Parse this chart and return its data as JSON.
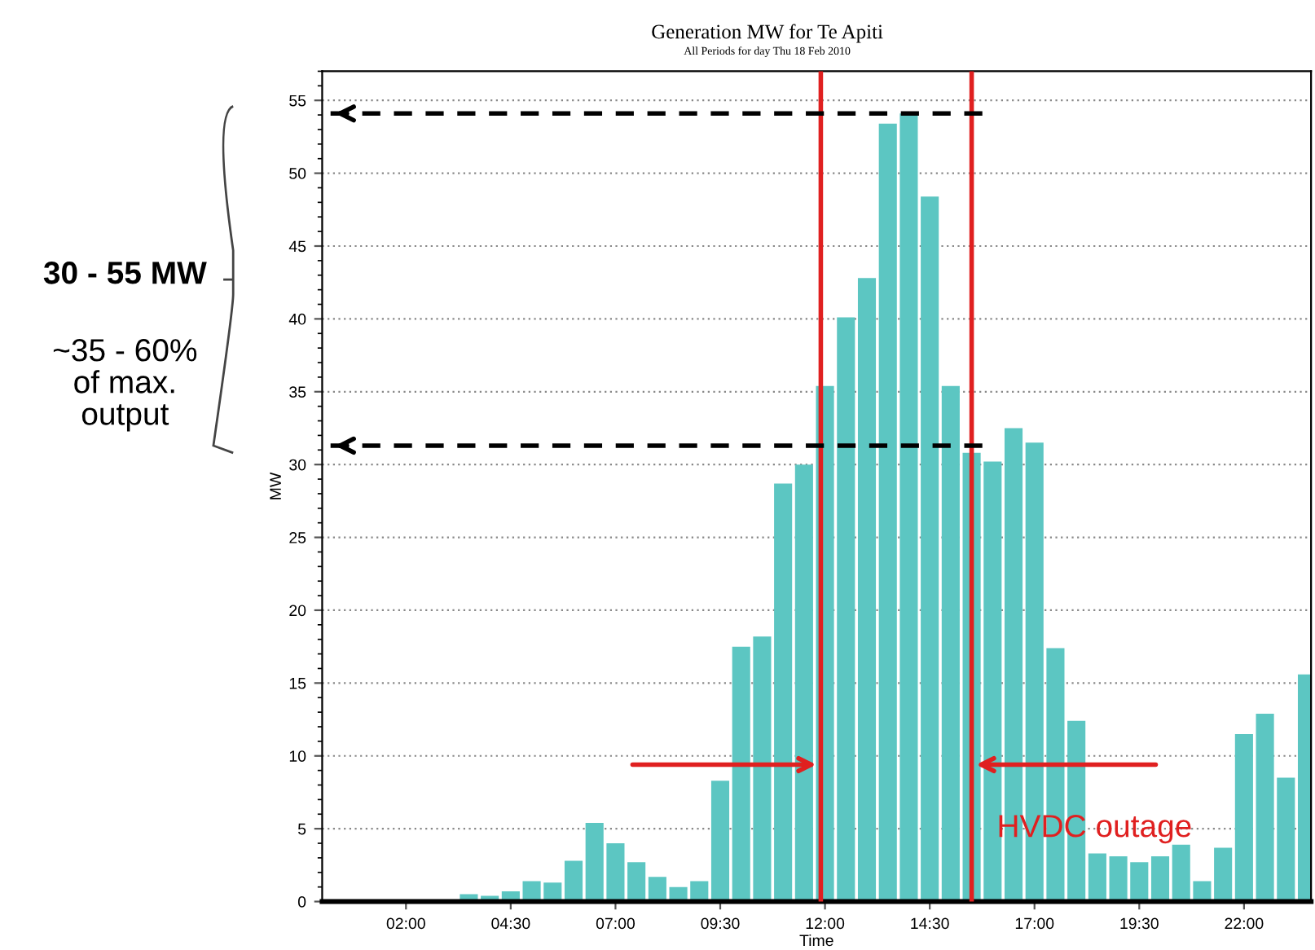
{
  "chart_data": {
    "type": "bar",
    "title": "Generation MW for Te Apiti",
    "subtitle": "All Periods for day Thu 18 Feb 2010",
    "xlabel": "Time",
    "ylabel": "MW",
    "x": [
      3.5,
      4.0,
      4.5,
      5.0,
      5.5,
      6.0,
      6.5,
      7.0,
      7.5,
      8.0,
      8.5,
      9.0,
      9.5,
      10.0,
      10.5,
      11.0,
      11.5,
      12.0,
      12.5,
      13.0,
      13.5,
      14.0,
      14.5,
      15.0,
      15.5,
      16.0,
      16.5,
      17.0,
      17.5,
      18.0,
      18.5,
      19.0,
      19.5,
      20.0,
      20.5,
      21.0,
      21.5,
      22.0,
      22.5,
      23.0,
      23.5
    ],
    "values": [
      0.5,
      0.4,
      0.7,
      1.4,
      1.3,
      2.8,
      5.4,
      4.0,
      2.7,
      1.7,
      1.0,
      1.4,
      8.3,
      17.5,
      18.2,
      28.7,
      30.0,
      35.4,
      40.1,
      42.8,
      53.4,
      54.1,
      48.4,
      35.4,
      30.8,
      30.2,
      32.5,
      31.5,
      17.4,
      12.4,
      3.3,
      3.1,
      2.7,
      3.1,
      3.9,
      1.4,
      3.7,
      11.5,
      12.9,
      8.5,
      15.6
    ],
    "color": "#5cc6c2",
    "xlim": [
      0,
      23.6
    ],
    "ylim": [
      0,
      57
    ],
    "xticks": [
      {
        "value": 2,
        "label": "02:00"
      },
      {
        "value": 4.5,
        "label": "04:30"
      },
      {
        "value": 7,
        "label": "07:00"
      },
      {
        "value": 9.5,
        "label": "09:30"
      },
      {
        "value": 12,
        "label": "12:00"
      },
      {
        "value": 14.5,
        "label": "14:30"
      },
      {
        "value": 17,
        "label": "17:00"
      },
      {
        "value": 19.5,
        "label": "19:30"
      },
      {
        "value": 22,
        "label": "22:00"
      }
    ],
    "yticks": [
      0,
      5,
      10,
      15,
      20,
      25,
      30,
      35,
      40,
      45,
      50,
      55
    ],
    "grid": "y",
    "ref_lines": [
      {
        "axis": "x",
        "value": 11.9,
        "color": "#e02020",
        "line_style": "solid"
      },
      {
        "axis": "x",
        "value": 15.5,
        "color": "#e02020",
        "line_style": "solid"
      },
      {
        "axis": "y",
        "value": 54.1,
        "color": "#000000",
        "line_style": "dashed"
      },
      {
        "axis": "y",
        "value": 31.3,
        "color": "#000000",
        "line_style": "dashed"
      }
    ],
    "annotations": [
      {
        "text": "HVDC outage",
        "x": 16.1,
        "y": 5.0
      },
      "30 - 55 MW",
      "~35 - 60%\nof max.\noutput"
    ]
  }
}
